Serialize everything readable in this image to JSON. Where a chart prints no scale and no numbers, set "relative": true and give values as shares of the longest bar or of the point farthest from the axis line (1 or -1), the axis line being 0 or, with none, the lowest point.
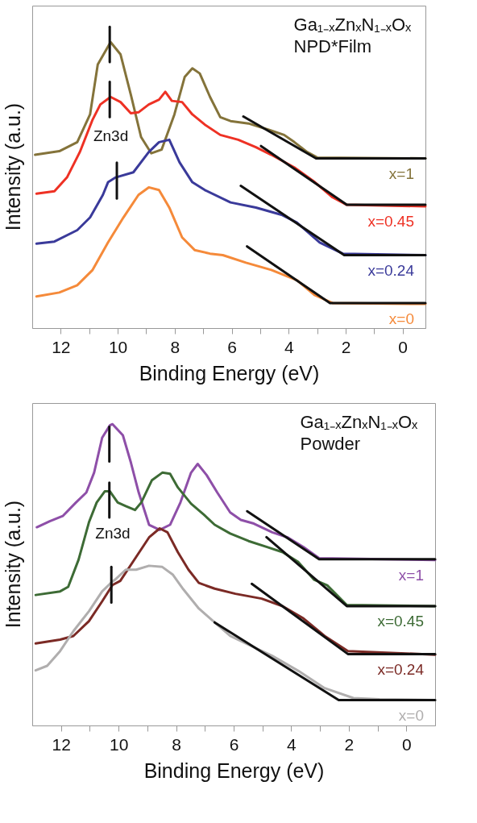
{
  "chart_data": [
    {
      "type": "line",
      "relative": true,
      "title": "Ga₁₋ₓZnₓN₁₋ₓOₓ",
      "subtitle": "NPD*Film",
      "xlabel": "Binding Energy (eV)",
      "ylabel": "Intensity (a.u.)",
      "xlim": [
        13,
        -0.8
      ],
      "xticks": [
        12,
        {
          "value": 11,
          "label": null
        },
        10,
        {
          "value": 9,
          "label": null
        },
        8,
        {
          "value": 7,
          "label": null
        },
        6,
        {
          "value": 5,
          "label": null
        },
        4,
        {
          "value": 3,
          "label": null
        },
        2,
        {
          "value": 1,
          "label": null
        },
        0
      ],
      "annotations": [
        "Zn3d"
      ],
      "series": [
        {
          "name": "x=1",
          "color": "#84733a",
          "x": [
            12.9,
            12.05,
            11.42,
            10.97,
            10.7,
            10.25,
            9.9,
            9.54,
            9.18,
            8.82,
            8.46,
            8.01,
            7.65,
            7.38,
            7.12,
            6.76,
            6.4,
            6.04,
            5.41,
            4.7,
            4.16,
            3.8,
            3.35,
            3.0,
            -0.8
          ],
          "values": [
            0.575,
            0.587,
            0.617,
            0.709,
            0.875,
            0.949,
            0.908,
            0.775,
            0.634,
            0.58,
            0.592,
            0.709,
            0.833,
            0.862,
            0.845,
            0.767,
            0.7,
            0.687,
            0.679,
            0.658,
            0.641,
            0.617,
            0.584,
            0.566,
            0.563
          ]
        },
        {
          "name": "x=0.45",
          "color": "#ee3124",
          "x": [
            12.85,
            12.22,
            11.78,
            11.33,
            10.88,
            10.61,
            10.25,
            9.9,
            9.54,
            9.27,
            8.91,
            8.55,
            8.33,
            8.1,
            7.74,
            7.38,
            6.94,
            6.4,
            5.77,
            5.15,
            4.61,
            3.8,
            3.08,
            2.46,
            1.96,
            -0.8
          ],
          "values": [
            0.446,
            0.454,
            0.5,
            0.584,
            0.692,
            0.742,
            0.767,
            0.75,
            0.713,
            0.716,
            0.742,
            0.758,
            0.784,
            0.754,
            0.75,
            0.709,
            0.675,
            0.641,
            0.625,
            0.6,
            0.575,
            0.533,
            0.484,
            0.434,
            0.409,
            0.404
          ]
        },
        {
          "name": "x=0.24",
          "color": "#3a3a9a",
          "x": [
            12.85,
            12.22,
            11.42,
            10.97,
            10.52,
            10.34,
            10.07,
            9.45,
            8.91,
            8.55,
            8.19,
            7.83,
            7.38,
            6.94,
            6.04,
            5.15,
            4.25,
            3.71,
            2.91,
            2.1,
            -0.8
          ],
          "values": [
            0.28,
            0.287,
            0.325,
            0.367,
            0.442,
            0.484,
            0.5,
            0.517,
            0.584,
            0.617,
            0.625,
            0.55,
            0.484,
            0.458,
            0.417,
            0.4,
            0.376,
            0.35,
            0.284,
            0.247,
            0.242
          ]
        },
        {
          "name": "x=0",
          "color": "#f58a3a",
          "x": [
            12.85,
            12.05,
            11.42,
            10.88,
            10.34,
            9.8,
            9.27,
            8.91,
            8.55,
            8.19,
            7.74,
            7.3,
            6.76,
            6.31,
            5.5,
            4.61,
            3.71,
            3.08,
            2.46,
            -0.8
          ],
          "values": [
            0.105,
            0.118,
            0.142,
            0.193,
            0.284,
            0.367,
            0.442,
            0.467,
            0.458,
            0.4,
            0.301,
            0.259,
            0.247,
            0.242,
            0.217,
            0.193,
            0.159,
            0.109,
            0.083,
            0.08
          ]
        },
        {
          "type": "line",
          "color": "#111111",
          "x": [
            5.59,
            3.04,
            -0.8
          ],
          "values": [
            0.702,
            0.563,
            0.563
          ]
        },
        {
          "type": "line",
          "color": "#111111",
          "x": [
            4.97,
            1.96,
            -0.8
          ],
          "values": [
            0.604,
            0.409,
            0.409
          ]
        },
        {
          "type": "line",
          "color": "#111111",
          "x": [
            5.68,
            2.05,
            -0.8
          ],
          "values": [
            0.472,
            0.242,
            0.242
          ]
        },
        {
          "type": "line",
          "color": "#111111",
          "x": [
            5.46,
            2.55,
            -0.8
          ],
          "values": [
            0.271,
            0.083,
            0.083
          ]
        },
        {
          "type": "line",
          "color": "#111111",
          "x": [
            10.28,
            10.28
          ],
          "values": [
            1.0,
            0.883
          ]
        },
        {
          "type": "line",
          "color": "#111111",
          "x": [
            10.28,
            10.28
          ],
          "values": [
            0.817,
            0.7
          ]
        },
        {
          "type": "line",
          "color": "#111111",
          "x": [
            10.03,
            10.03
          ],
          "values": [
            0.549,
            0.43
          ]
        }
      ]
    },
    {
      "type": "line",
      "relative": true,
      "title": "Ga₁₋ₓZnₓN₁₋ₓOₓ",
      "subtitle": "Powder",
      "xlabel": "Binding Energy (eV)",
      "ylabel": "Intensity (a.u.)",
      "xlim": [
        13,
        -1.0
      ],
      "xticks": [
        12,
        {
          "value": 11,
          "label": null
        },
        10,
        {
          "value": 9,
          "label": null
        },
        8,
        {
          "value": 7,
          "label": null
        },
        6,
        {
          "value": 5,
          "label": null
        },
        4,
        {
          "value": 3,
          "label": null
        },
        2,
        {
          "value": 1,
          "label": null
        },
        0
      ],
      "annotations": [
        "Zn3d"
      ],
      "series": [
        {
          "name": "x=1",
          "color": "#8e4fa8",
          "x": [
            12.84,
            12.39,
            11.94,
            11.48,
            11.12,
            10.85,
            10.57,
            10.3,
            10.21,
            9.85,
            9.57,
            9.3,
            8.94,
            8.57,
            8.21,
            7.85,
            7.48,
            7.25,
            6.94,
            6.57,
            6.12,
            5.75,
            5.3,
            4.66,
            4.12,
            3.57,
            3.03,
            -1.0
          ],
          "values": [
            0.658,
            0.678,
            0.695,
            0.74,
            0.773,
            0.839,
            0.955,
            0.996,
            1.0,
            0.963,
            0.872,
            0.773,
            0.666,
            0.649,
            0.666,
            0.74,
            0.839,
            0.868,
            0.831,
            0.773,
            0.707,
            0.682,
            0.67,
            0.641,
            0.624,
            0.592,
            0.555,
            0.549
          ]
        },
        {
          "name": "x=0.45",
          "color": "#3d6b35",
          "x": [
            12.88,
            12.03,
            11.75,
            11.39,
            11.03,
            10.76,
            10.48,
            10.3,
            10.03,
            9.75,
            9.43,
            9.21,
            8.84,
            8.48,
            8.21,
            7.94,
            7.48,
            7.03,
            6.66,
            6.12,
            5.48,
            4.84,
            4.3,
            3.75,
            3.21,
            2.75,
            2.07,
            -1.0
          ],
          "values": [
            0.433,
            0.445,
            0.46,
            0.55,
            0.674,
            0.74,
            0.777,
            0.777,
            0.74,
            0.728,
            0.715,
            0.74,
            0.814,
            0.839,
            0.835,
            0.79,
            0.736,
            0.699,
            0.666,
            0.637,
            0.612,
            0.592,
            0.575,
            0.542,
            0.484,
            0.465,
            0.4,
            0.396
          ]
        },
        {
          "name": "x=0.24",
          "color": "#7b2a25",
          "x": [
            12.88,
            12.03,
            11.57,
            11.03,
            10.57,
            10.21,
            9.94,
            9.39,
            8.94,
            8.57,
            8.3,
            7.94,
            7.57,
            7.21,
            6.66,
            5.94,
            5.03,
            4.3,
            3.57,
            2.84,
            2.03,
            -1.0
          ],
          "values": [
            0.272,
            0.285,
            0.297,
            0.346,
            0.412,
            0.466,
            0.48,
            0.559,
            0.624,
            0.654,
            0.641,
            0.575,
            0.517,
            0.473,
            0.454,
            0.437,
            0.421,
            0.396,
            0.355,
            0.297,
            0.247,
            0.235
          ]
        },
        {
          "name": "x=0",
          "color": "#b0aeae",
          "x": [
            12.88,
            12.48,
            12.03,
            11.57,
            11.03,
            10.57,
            10.21,
            10.12,
            9.75,
            9.39,
            8.94,
            8.48,
            8.12,
            7.75,
            7.21,
            6.66,
            6.12,
            5.39,
            4.66,
            3.75,
            2.84,
            1.84,
            0.93,
            -1.0
          ],
          "values": [
            0.183,
            0.198,
            0.247,
            0.313,
            0.379,
            0.445,
            0.478,
            0.484,
            0.517,
            0.517,
            0.53,
            0.526,
            0.501,
            0.452,
            0.388,
            0.342,
            0.297,
            0.264,
            0.231,
            0.181,
            0.124,
            0.091,
            0.087,
            0.084
          ]
        },
        {
          "type": "line",
          "color": "#111111",
          "x": [
            5.53,
            3.03,
            -1.0
          ],
          "values": [
            0.711,
            0.552,
            0.552
          ]
        },
        {
          "type": "line",
          "color": "#111111",
          "x": [
            4.86,
            2.07,
            -1.0
          ],
          "values": [
            0.625,
            0.396,
            0.396
          ]
        },
        {
          "type": "line",
          "color": "#111111",
          "x": [
            5.37,
            2.03,
            -1.0
          ],
          "values": [
            0.47,
            0.237,
            0.237
          ]
        },
        {
          "type": "line",
          "color": "#111111",
          "x": [
            6.66,
            2.35,
            -1.0
          ],
          "values": [
            0.342,
            0.084,
            0.084
          ]
        },
        {
          "type": "line",
          "color": "#111111",
          "x": [
            10.32,
            10.32
          ],
          "values": [
            0.991,
            0.876
          ]
        },
        {
          "type": "line",
          "color": "#111111",
          "x": [
            10.32,
            10.32
          ],
          "values": [
            0.806,
            0.69
          ]
        },
        {
          "type": "line",
          "color": "#111111",
          "x": [
            10.25,
            10.25
          ],
          "values": [
            0.526,
            0.408
          ]
        }
      ]
    }
  ]
}
